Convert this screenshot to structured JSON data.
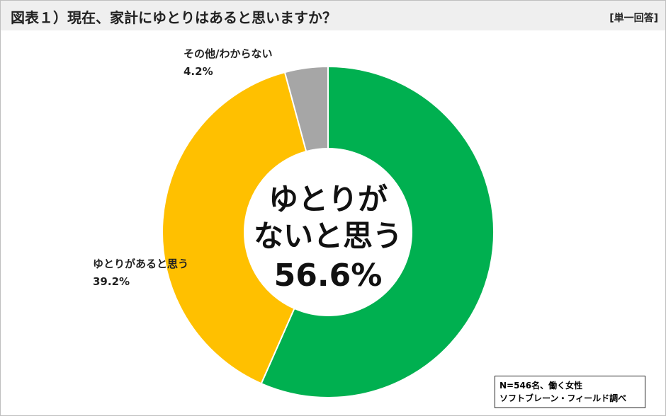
{
  "header": {
    "title": "図表１）現在、家計にゆとりはあると思いますか？",
    "answer_type": "[単一回答]"
  },
  "chart_data": {
    "type": "donut",
    "categories": [
      "ゆとりが\nないと思う",
      "ゆとりがあると思う",
      "その他/わからない"
    ],
    "values": [
      56.6,
      39.2,
      4.2
    ],
    "value_labels": [
      "56.6%",
      "39.2%",
      "4.2%"
    ],
    "colors": [
      "#00b050",
      "#ffc000",
      "#a6a6a6"
    ]
  },
  "footnote": {
    "lines": [
      "N=546名、働く女性",
      "ソフトブレーン・フィールド調べ"
    ]
  }
}
